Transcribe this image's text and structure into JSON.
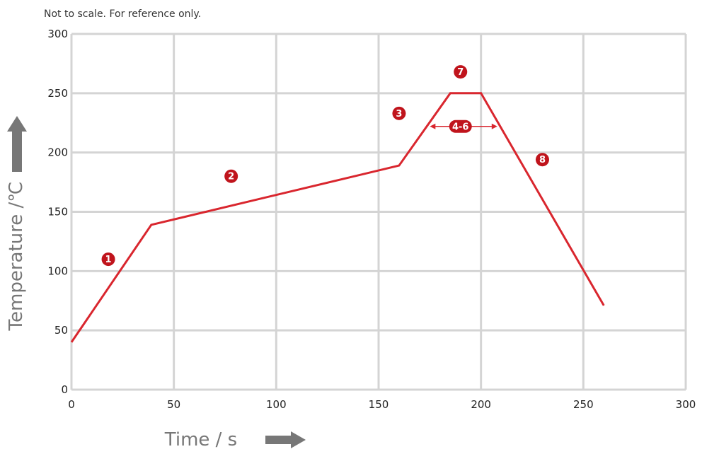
{
  "note": "Not to scale. For reference only.",
  "colors": {
    "profile": "#d9262e",
    "marker": "#c0141c",
    "grid": "#d4d4d4",
    "axis_arrow": "#777777"
  },
  "chart_data": {
    "type": "line",
    "xlabel": "Time / s",
    "ylabel": "Temperature /℃",
    "xlim": [
      0,
      300
    ],
    "ylim": [
      0,
      300
    ],
    "grid": true,
    "x_ticks": [
      0,
      50,
      100,
      150,
      200,
      250,
      300
    ],
    "y_ticks": [
      0,
      50,
      100,
      150,
      200,
      250,
      300
    ],
    "series": [
      {
        "x": [
          0,
          39,
          160,
          185,
          200,
          260
        ],
        "y": [
          40,
          139,
          189,
          250,
          250,
          71
        ]
      }
    ],
    "annotations": [
      {
        "label": "1",
        "x": 18,
        "y": 110
      },
      {
        "label": "2",
        "x": 78,
        "y": 180
      },
      {
        "label": "3",
        "x": 160,
        "y": 233
      },
      {
        "label": "4-6",
        "x": 190,
        "y": 222,
        "span": [
          175,
          208
        ]
      },
      {
        "label": "7",
        "x": 190,
        "y": 268
      },
      {
        "label": "8",
        "x": 230,
        "y": 194
      }
    ]
  }
}
